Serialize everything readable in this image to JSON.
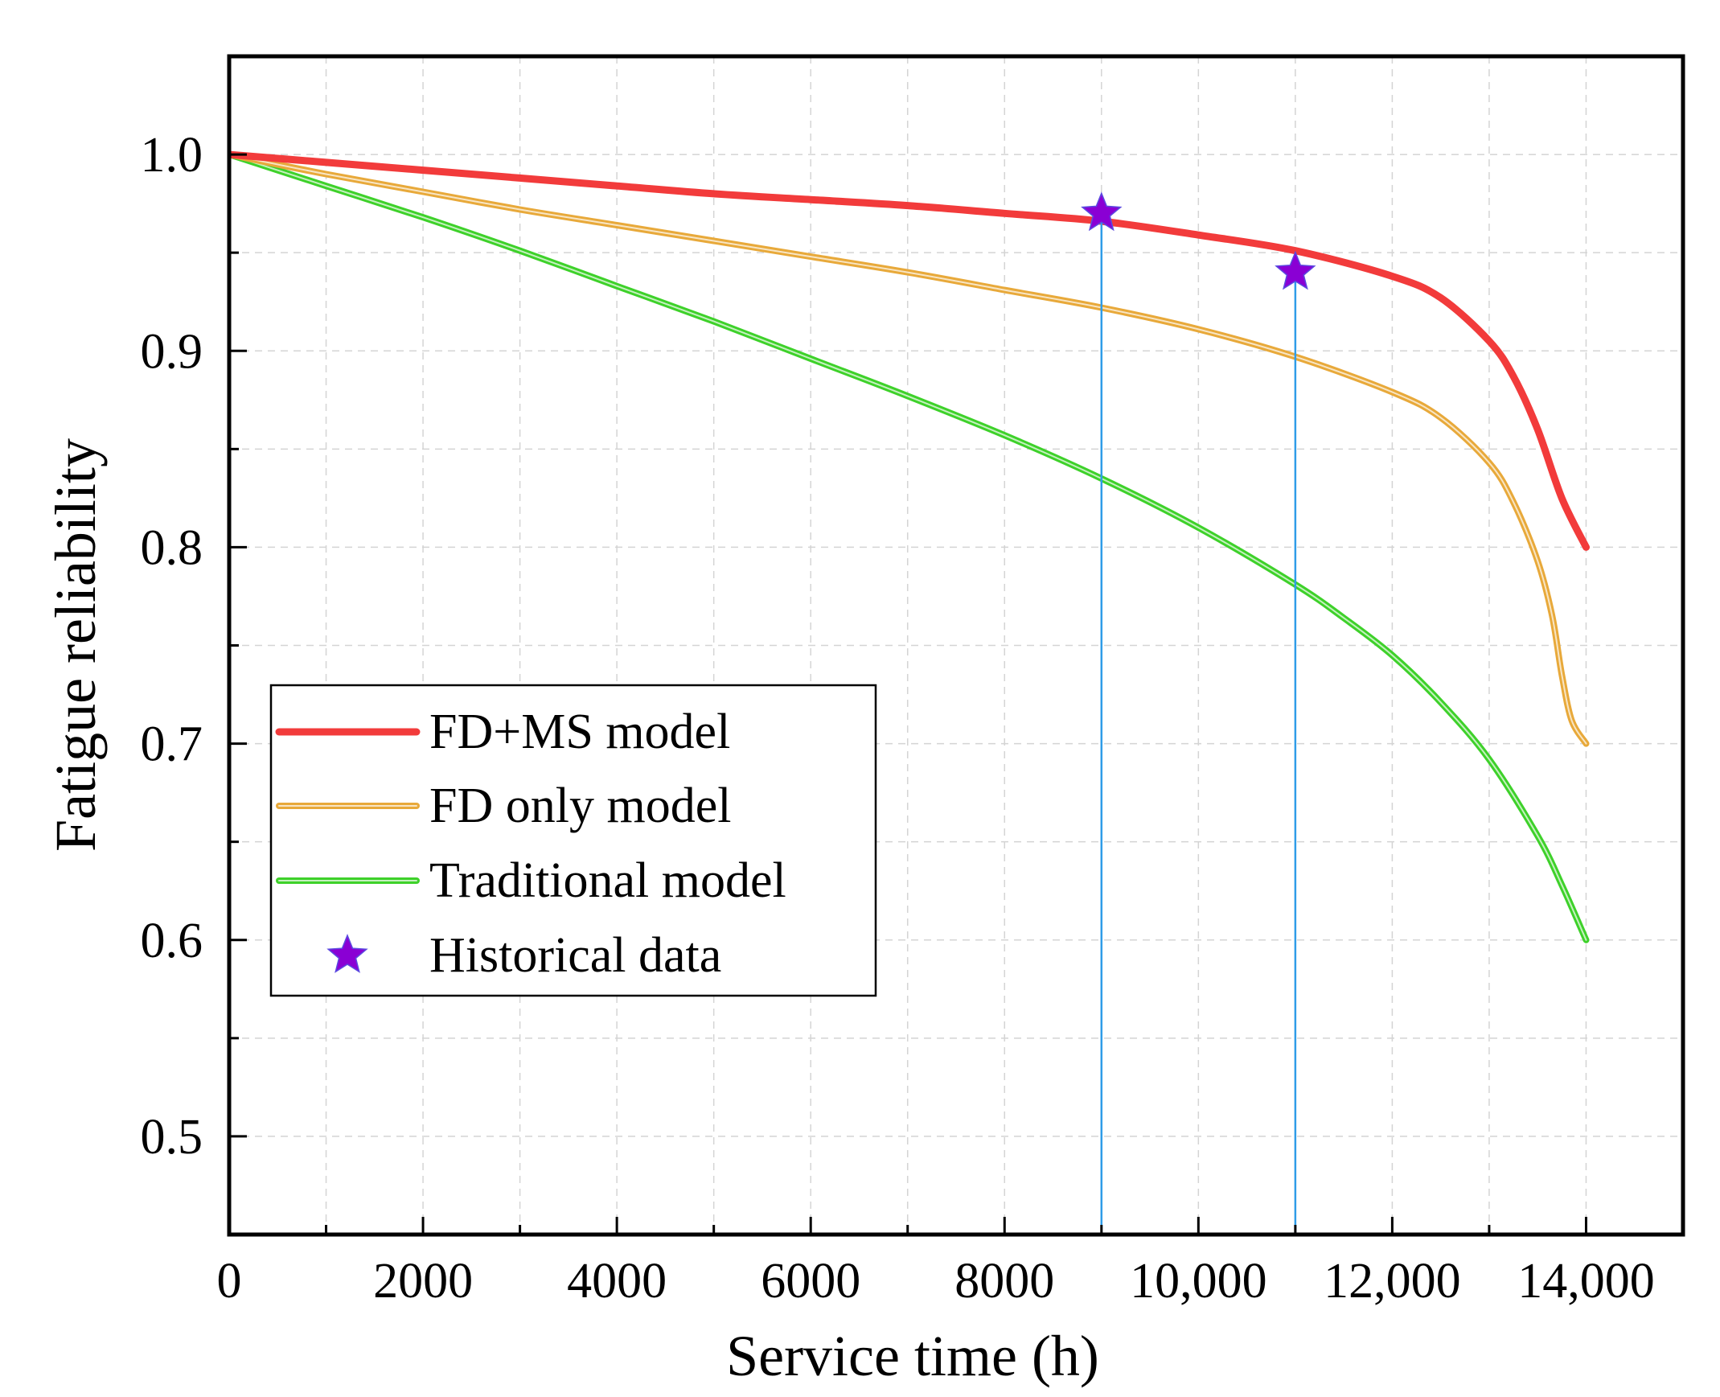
{
  "chart_data": {
    "type": "line",
    "title": "",
    "xlabel": "Service time (h)",
    "ylabel": "Fatigue reliability",
    "xlim": [
      0,
      15000
    ],
    "ylim": [
      0.45,
      1.05
    ],
    "grid": true,
    "legend_position": "lower-left",
    "x_ticks": [
      0,
      2000,
      4000,
      6000,
      8000,
      10000,
      12000,
      14000
    ],
    "x_tick_labels": [
      "0",
      "2000",
      "4000",
      "6000",
      "8000",
      "10,000",
      "12,000",
      "14,000"
    ],
    "y_ticks": [
      0.5,
      0.6,
      0.7,
      0.8,
      0.9,
      1.0
    ],
    "y_tick_labels": [
      "0.5",
      "0.6",
      "0.7",
      "0.8",
      "0.9",
      "1.0"
    ],
    "series": [
      {
        "name": "FD+MS model",
        "color": "#f23b3b",
        "style": "solid",
        "x": [
          0,
          1000,
          2000,
          3000,
          4000,
          5000,
          6000,
          7000,
          8000,
          9000,
          10000,
          11000,
          12000,
          12500,
          13000,
          13250,
          13500,
          13750,
          14000
        ],
        "y": [
          1.0,
          0.996,
          0.992,
          0.988,
          0.984,
          0.98,
          0.977,
          0.974,
          0.97,
          0.966,
          0.959,
          0.951,
          0.938,
          0.927,
          0.905,
          0.887,
          0.86,
          0.825,
          0.8
        ]
      },
      {
        "name": "FD only model",
        "color": "#e8a93a",
        "style": "double",
        "x": [
          0,
          1000,
          2000,
          3000,
          4000,
          5000,
          6000,
          7000,
          8000,
          9000,
          10000,
          11000,
          12000,
          12500,
          13000,
          13250,
          13500,
          13650,
          13750,
          13850,
          14000
        ],
        "y": [
          1.0,
          0.99,
          0.981,
          0.972,
          0.964,
          0.956,
          0.948,
          0.94,
          0.931,
          0.922,
          0.911,
          0.897,
          0.879,
          0.866,
          0.843,
          0.823,
          0.793,
          0.765,
          0.735,
          0.712,
          0.7
        ]
      },
      {
        "name": "Traditional model",
        "color": "#3ed12a",
        "style": "double",
        "x": [
          0,
          1000,
          2000,
          3000,
          4000,
          5000,
          6000,
          7000,
          8000,
          9000,
          10000,
          11000,
          11500,
          12000,
          12500,
          13000,
          13500,
          13750,
          14000
        ],
        "y": [
          1.0,
          0.984,
          0.968,
          0.951,
          0.933,
          0.915,
          0.896,
          0.877,
          0.857,
          0.835,
          0.81,
          0.781,
          0.764,
          0.745,
          0.721,
          0.692,
          0.653,
          0.628,
          0.6
        ]
      }
    ],
    "historical_data": {
      "name": "Historical data",
      "color": "#8a00d4",
      "x": [
        9000,
        11000
      ],
      "y": [
        0.97,
        0.94
      ]
    },
    "reference_lines": {
      "color": "#2f9ce8",
      "x": [
        9000,
        11000
      ]
    }
  }
}
